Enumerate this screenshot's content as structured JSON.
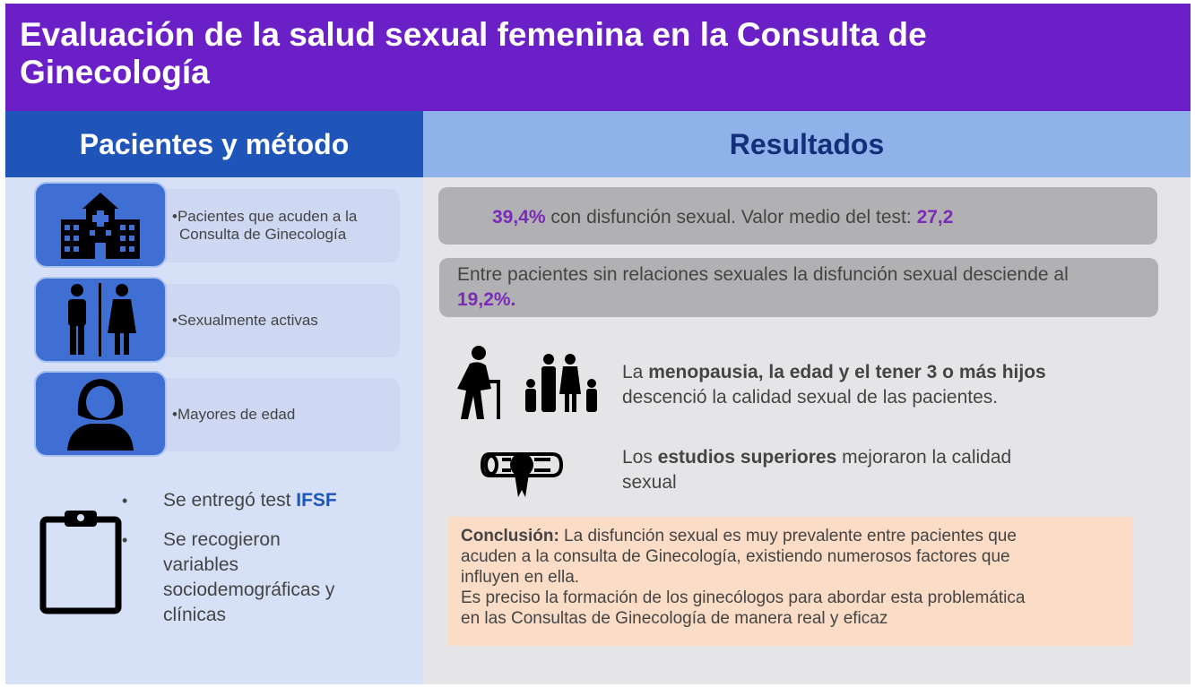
{
  "header": {
    "title_line1": "Evaluación de la salud sexual femenina en la Consulta de",
    "title_line2": "Ginecología"
  },
  "left": {
    "heading": "Pacientes y método",
    "items": [
      {
        "text_line1": "•Pacientes que acuden a la",
        "text_line2": "Consulta de Ginecología",
        "icon": "hospital-icon"
      },
      {
        "text": "•Sexualmente activas",
        "icon": "man-woman-icon"
      },
      {
        "text": "•Mayores de edad",
        "icon": "woman-avatar-icon"
      }
    ],
    "bullets": [
      {
        "marker": "•",
        "text": "Se entregó test ",
        "highlight": "IFSF"
      },
      {
        "marker": "•",
        "lines": [
          "Se recogieron",
          "variables",
          "sociodemográficas y",
          "clínicas"
        ]
      }
    ],
    "clipboard_icon": "clipboard-icon"
  },
  "right": {
    "heading": "Resultados",
    "result1": {
      "pct": "39,4%",
      "text": " con disfunción sexual. Valor medio del test: ",
      "value": "27,2"
    },
    "result2": {
      "text": "Entre pacientes sin relaciones sexuales la disfunción sexual desciende al",
      "pct": "19,2%."
    },
    "factor1": {
      "pre": "La ",
      "bold": "menopausia, la edad y el tener 3 o más hijos",
      "post": "descenció la calidad sexual de las pacientes.",
      "icons": [
        "elderly-person-icon",
        "family-icon"
      ]
    },
    "factor2": {
      "pre": "Los ",
      "bold": "estudios superiores",
      "post_line1": " mejoraron la calidad",
      "post_line2": "sexual",
      "icon": "diploma-icon"
    },
    "conclusion": {
      "label": "Conclusión:",
      "line1": " La disfunción sexual es muy prevalente entre pacientes que",
      "line2": "acuden a la consulta de Ginecología, existiendo numerosos factores que",
      "line3": "influyen en ella.",
      "line4": "Es preciso la formación de los ginecólogos para abordar esta problemática",
      "line5": "en las Consultas de Ginecología de manera real y eficaz"
    }
  },
  "colors": {
    "header_bg": "#6a1fc7",
    "left_head_bg": "#1f55b8",
    "right_head_bg": "#8fb2ea",
    "accent_purple": "#7b2bb8",
    "conclusion_bg": "#fbdcc7"
  }
}
